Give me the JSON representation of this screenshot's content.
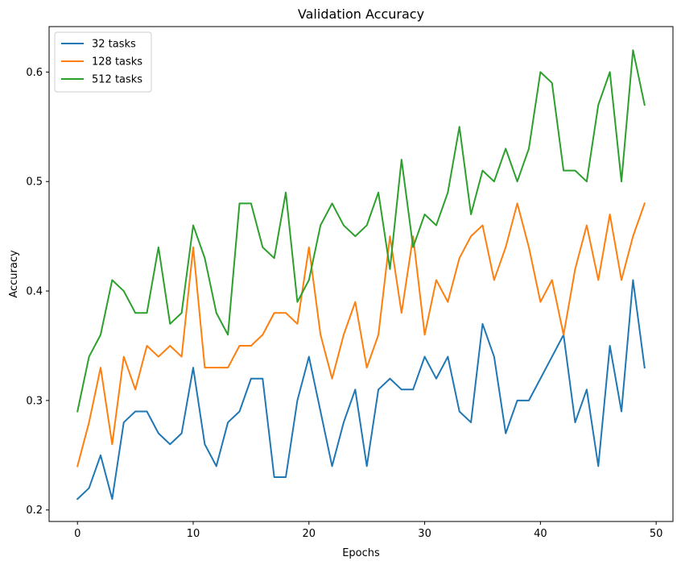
{
  "chart_data": {
    "type": "line",
    "title": "Validation Accuracy",
    "xlabel": "Epochs",
    "ylabel": "Accuracy",
    "xlim": [
      -2.45,
      51.45
    ],
    "ylim": [
      0.1895,
      0.6415
    ],
    "xticks": [
      0,
      10,
      20,
      30,
      40,
      50
    ],
    "xtick_labels": [
      "0",
      "10",
      "20",
      "30",
      "40",
      "50"
    ],
    "yticks": [
      0.2,
      0.3,
      0.4,
      0.5,
      0.6
    ],
    "ytick_labels": [
      "0.2",
      "0.3",
      "0.4",
      "0.5",
      "0.6"
    ],
    "grid": false,
    "legend_position": "top-left",
    "x": [
      0,
      1,
      2,
      3,
      4,
      5,
      6,
      7,
      8,
      9,
      10,
      11,
      12,
      13,
      14,
      15,
      16,
      17,
      18,
      19,
      20,
      21,
      22,
      23,
      24,
      25,
      26,
      27,
      28,
      29,
      30,
      31,
      32,
      33,
      34,
      35,
      36,
      37,
      38,
      39,
      40,
      41,
      42,
      43,
      44,
      45,
      46,
      47,
      48,
      49
    ],
    "series": [
      {
        "name": "32 tasks",
        "color": "#1f77b4",
        "values": [
          0.21,
          0.22,
          0.25,
          0.21,
          0.28,
          0.29,
          0.29,
          0.27,
          0.26,
          0.27,
          0.33,
          0.26,
          0.24,
          0.28,
          0.29,
          0.32,
          0.32,
          0.23,
          0.23,
          0.3,
          0.34,
          0.29,
          0.24,
          0.28,
          0.31,
          0.24,
          0.31,
          0.32,
          0.31,
          0.31,
          0.34,
          0.32,
          0.34,
          0.29,
          0.28,
          0.37,
          0.34,
          0.27,
          0.3,
          0.3,
          0.32,
          0.34,
          0.36,
          0.28,
          0.31,
          0.24,
          0.35,
          0.29,
          0.41,
          0.33
        ]
      },
      {
        "name": "128 tasks",
        "color": "#ff7f0e",
        "values": [
          0.24,
          0.28,
          0.33,
          0.26,
          0.34,
          0.31,
          0.35,
          0.34,
          0.35,
          0.34,
          0.44,
          0.33,
          0.33,
          0.33,
          0.35,
          0.35,
          0.36,
          0.38,
          0.38,
          0.37,
          0.44,
          0.36,
          0.32,
          0.36,
          0.39,
          0.33,
          0.36,
          0.45,
          0.38,
          0.45,
          0.36,
          0.41,
          0.39,
          0.43,
          0.45,
          0.46,
          0.41,
          0.44,
          0.48,
          0.44,
          0.39,
          0.41,
          0.36,
          0.42,
          0.46,
          0.41,
          0.47,
          0.41,
          0.45,
          0.48
        ]
      },
      {
        "name": "512 tasks",
        "color": "#2ca02c",
        "values": [
          0.29,
          0.34,
          0.36,
          0.41,
          0.4,
          0.38,
          0.38,
          0.44,
          0.37,
          0.38,
          0.46,
          0.43,
          0.38,
          0.36,
          0.48,
          0.48,
          0.44,
          0.43,
          0.49,
          0.39,
          0.41,
          0.46,
          0.48,
          0.46,
          0.45,
          0.46,
          0.49,
          0.42,
          0.52,
          0.44,
          0.47,
          0.46,
          0.49,
          0.55,
          0.47,
          0.51,
          0.5,
          0.53,
          0.5,
          0.53,
          0.6,
          0.59,
          0.51,
          0.51,
          0.5,
          0.57,
          0.6,
          0.5,
          0.62,
          0.57
        ]
      }
    ]
  }
}
